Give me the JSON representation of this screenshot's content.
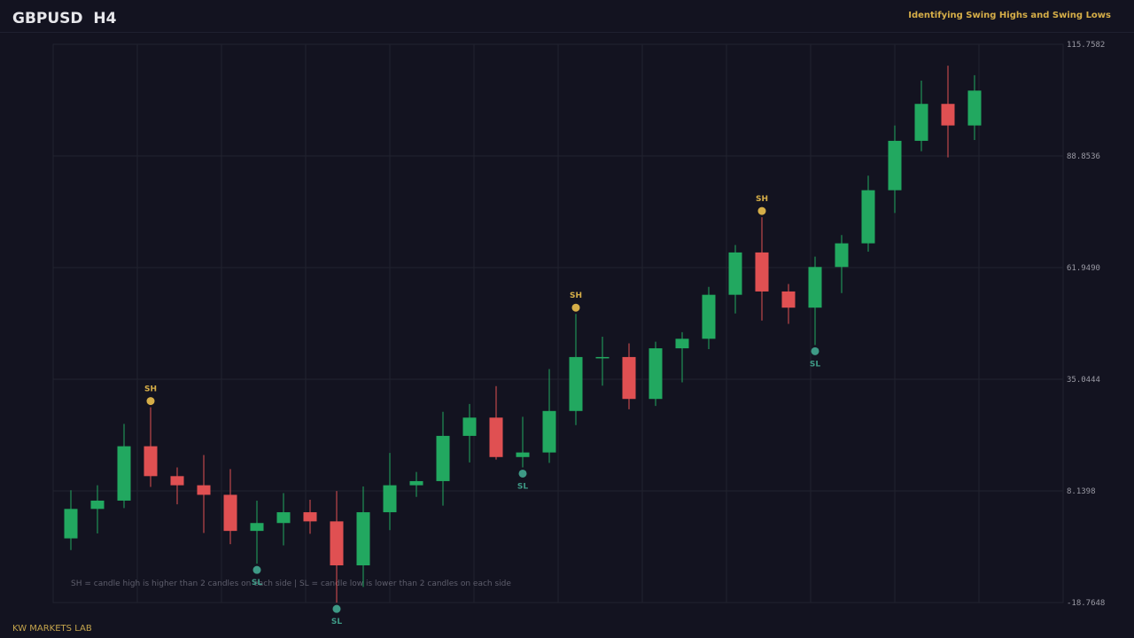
{
  "header": {
    "symbol": "GBPUSD  H4",
    "subtitle": "Identifying Swing Highs and Swing Lows"
  },
  "footer": {
    "brand": "KW MARKETS LAB"
  },
  "colors": {
    "background": "#131320",
    "grid": "#22232f",
    "bullish": "#22a860",
    "bearish": "#e05052",
    "swing_high": "#d6ae48",
    "swing_low": "#3e9a86",
    "axis_text": "#9a9aa4",
    "note_text": "#5e5e6c"
  },
  "chart_data": {
    "type": "candlestick",
    "y_ticks": [
      "115.7582",
      "88.8536",
      "61.9490",
      "35.0444",
      "8.1398",
      "-18.7648"
    ],
    "ylim": [
      -18.7648,
      115.7582
    ],
    "grid": true,
    "note": "SH = candle high is higher than 2 candles on each side  |  SL = candle low is lower than 2 candles on each side",
    "candles": [
      {
        "o": -3.3,
        "h": 8.3,
        "l": -6.1,
        "c": 3.8
      },
      {
        "o": 3.8,
        "h": 9.5,
        "l": -2.1,
        "c": 5.8
      },
      {
        "o": 5.8,
        "h": 24.3,
        "l": 4.0,
        "c": 18.9
      },
      {
        "o": 18.9,
        "h": 28.3,
        "l": 9.1,
        "c": 11.7
      },
      {
        "o": 11.7,
        "h": 13.8,
        "l": 4.9,
        "c": 9.5
      },
      {
        "o": 9.5,
        "h": 16.8,
        "l": -2.0,
        "c": 7.2
      },
      {
        "o": 7.2,
        "h": 13.4,
        "l": -4.7,
        "c": -1.5
      },
      {
        "o": -1.5,
        "h": 5.8,
        "l": -9.4,
        "c": 0.4
      },
      {
        "o": 0.4,
        "h": 7.6,
        "l": -5.0,
        "c": 3.0
      },
      {
        "o": 3.0,
        "h": 6.0,
        "l": -2.2,
        "c": 0.8
      },
      {
        "o": 0.8,
        "h": 8.1,
        "l": -18.8,
        "c": -9.8
      },
      {
        "o": -9.8,
        "h": 9.2,
        "l": -15.0,
        "c": 3.0
      },
      {
        "o": 3.0,
        "h": 17.3,
        "l": -1.3,
        "c": 9.5
      },
      {
        "o": 9.5,
        "h": 12.7,
        "l": 6.7,
        "c": 10.5
      },
      {
        "o": 10.5,
        "h": 27.2,
        "l": 4.6,
        "c": 21.4
      },
      {
        "o": 21.4,
        "h": 29.1,
        "l": 15.0,
        "c": 25.8
      },
      {
        "o": 25.8,
        "h": 33.4,
        "l": 15.7,
        "c": 16.3
      },
      {
        "o": 16.3,
        "h": 26.0,
        "l": 13.8,
        "c": 17.4
      },
      {
        "o": 17.4,
        "h": 37.5,
        "l": 14.9,
        "c": 27.4
      },
      {
        "o": 27.4,
        "h": 50.8,
        "l": 24.0,
        "c": 40.4
      },
      {
        "o": 40.4,
        "h": 45.3,
        "l": 33.5,
        "c": 40.4
      },
      {
        "o": 40.4,
        "h": 43.7,
        "l": 27.8,
        "c": 30.3
      },
      {
        "o": 30.3,
        "h": 44.1,
        "l": 28.6,
        "c": 42.5
      },
      {
        "o": 42.5,
        "h": 46.4,
        "l": 34.3,
        "c": 44.8
      },
      {
        "o": 44.8,
        "h": 57.3,
        "l": 42.3,
        "c": 55.4
      },
      {
        "o": 55.4,
        "h": 67.4,
        "l": 50.9,
        "c": 65.6
      },
      {
        "o": 65.6,
        "h": 74.1,
        "l": 49.2,
        "c": 56.2
      },
      {
        "o": 56.2,
        "h": 58.0,
        "l": 48.4,
        "c": 52.3
      },
      {
        "o": 52.3,
        "h": 64.6,
        "l": 43.3,
        "c": 62.1
      },
      {
        "o": 62.1,
        "h": 69.8,
        "l": 55.8,
        "c": 67.8
      },
      {
        "o": 67.8,
        "h": 84.1,
        "l": 65.8,
        "c": 80.6
      },
      {
        "o": 80.6,
        "h": 96.2,
        "l": 75.1,
        "c": 92.5
      },
      {
        "o": 92.5,
        "h": 107.0,
        "l": 90.0,
        "c": 101.4
      },
      {
        "o": 101.4,
        "h": 110.6,
        "l": 88.5,
        "c": 96.2
      },
      {
        "o": 96.2,
        "h": 108.3,
        "l": 92.7,
        "c": 104.6
      }
    ],
    "swing_points": [
      {
        "index": 3,
        "type": "SH",
        "label": "SH",
        "value": 28.3
      },
      {
        "index": 7,
        "type": "SL",
        "label": "SL",
        "value": -9.4
      },
      {
        "index": 10,
        "type": "SL",
        "label": "SL",
        "value": -18.8
      },
      {
        "index": 17,
        "type": "SL",
        "label": "SL",
        "value": 13.8
      },
      {
        "index": 19,
        "type": "SH",
        "label": "SH",
        "value": 50.8
      },
      {
        "index": 26,
        "type": "SH",
        "label": "SH",
        "value": 74.1
      },
      {
        "index": 28,
        "type": "SL",
        "label": "SL",
        "value": 43.3
      }
    ]
  }
}
